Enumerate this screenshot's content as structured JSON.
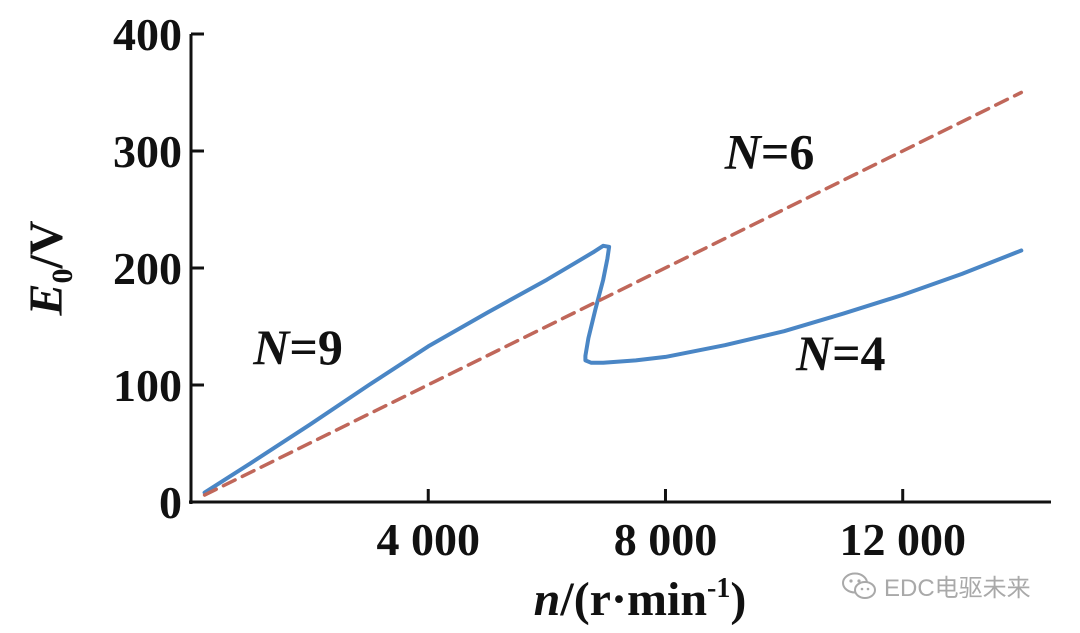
{
  "chart_data": {
    "type": "line",
    "xlabel_var": "n",
    "xlabel_unit": "/(r·min",
    "xlabel_exp": "-1",
    "xlabel_close": ")",
    "ylabel_var": "E",
    "ylabel_sub": "0",
    "ylabel_unit": "/V",
    "xlim": [
      0,
      14500
    ],
    "ylim": [
      0,
      400
    ],
    "x_ticks": [
      4000,
      8000,
      12000
    ],
    "x_tick_labels": [
      "4 000",
      "8 000",
      "12 000"
    ],
    "y_ticks": [
      0,
      100,
      200,
      300,
      400
    ],
    "y_tick_labels": [
      "0",
      "100",
      "200",
      "300",
      "400"
    ],
    "grid": false,
    "series": [
      {
        "style": "solid",
        "color": "#4a86c5",
        "x": [
          230,
          1000,
          2000,
          3000,
          4000,
          5000,
          6000,
          6500,
          6800,
          6950,
          7050,
          7020,
          6950,
          6820,
          6700,
          6650,
          6650,
          6750,
          6950,
          7500,
          8000,
          9000,
          10000,
          11000,
          12000,
          13000,
          14000
        ],
        "y": [
          8,
          33,
          66,
          100,
          133,
          162,
          190,
          205,
          214,
          219,
          218,
          208,
          190,
          165,
          140,
          125,
          121,
          119,
          119,
          121,
          124,
          134,
          146,
          161,
          177,
          195,
          215
        ]
      },
      {
        "style": "dashed",
        "color": "#c0675a",
        "x": [
          230,
          14000
        ],
        "y": [
          6,
          350
        ]
      }
    ],
    "annotations": [
      {
        "var": "N",
        "text": "=9",
        "x": 1050,
        "y": 118
      },
      {
        "var": "N",
        "text": "=6",
        "x": 9000,
        "y": 285
      },
      {
        "var": "N",
        "text": "=4",
        "x": 10200,
        "y": 113
      }
    ]
  },
  "watermark": {
    "text": "EDC电驱未来",
    "icon": "wechat-icon",
    "color": "#a9a9a9"
  }
}
